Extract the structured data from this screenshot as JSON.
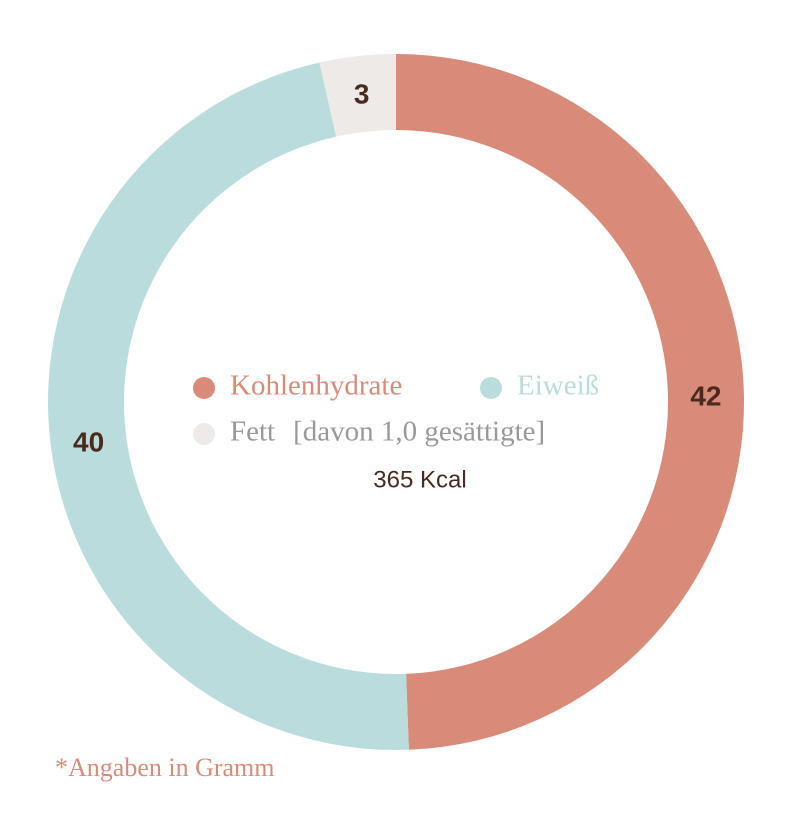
{
  "chart_data": {
    "type": "donut",
    "categories": [
      "Kohlenhydrate",
      "Eiweiß",
      "Fett"
    ],
    "values": [
      42,
      40,
      3
    ],
    "colors": [
      "#d98b7a",
      "#badcdd",
      "#eeeae8"
    ],
    "legend_note": "[davon 1,0 gesättigte]",
    "center_text": "365 Kcal",
    "footnote": "*Angaben in Gramm"
  }
}
